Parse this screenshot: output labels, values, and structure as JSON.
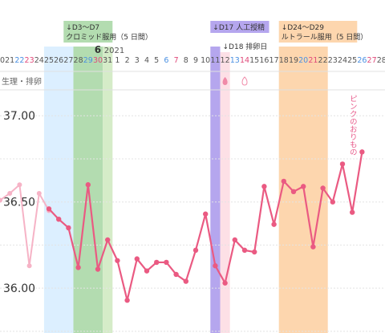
{
  "chart_data": {
    "type": "line",
    "title": "",
    "xlabel": "",
    "ylabel": "",
    "month_marker": {
      "label": "6",
      "year": "2021",
      "at_day_index": 9
    },
    "row_label": "生理・排卵",
    "days": [
      "20",
      "21",
      "22",
      "23",
      "24",
      "25",
      "26",
      "27",
      "28",
      "29",
      "30",
      "31",
      "1",
      "2",
      "3",
      "4",
      "5",
      "6",
      "7",
      "8",
      "9",
      "10",
      "11",
      "12",
      "13",
      "14",
      "15",
      "16",
      "17",
      "18",
      "19",
      "20",
      "21",
      "22",
      "23",
      "24",
      "25",
      "26",
      "27",
      "28"
    ],
    "day_colors": [
      "#555555",
      "#555555",
      "#4a90e2",
      "#e04a7a",
      "#555555",
      "#555555",
      "#555555",
      "#555555",
      "#555555",
      "#4a90e2",
      "#e04a7a",
      "#555555",
      "#555555",
      "#555555",
      "#555555",
      "#555555",
      "#555555",
      "#4a90e2",
      "#e04a7a",
      "#555555",
      "#555555",
      "#555555",
      "#555555",
      "#555555",
      "#4a90e2",
      "#e04a7a",
      "#555555",
      "#555555",
      "#555555",
      "#555555",
      "#555555",
      "#4a90e2",
      "#e04a7a",
      "#555555",
      "#555555",
      "#555555",
      "#555555",
      "#4a90e2",
      "#e04a7a",
      "#555555"
    ],
    "y_ticks": [
      {
        "value": 37.0,
        "label": "37.00"
      },
      {
        "value": 36.5,
        "label": "36.50"
      },
      {
        "value": 36.0,
        "label": "36.00"
      }
    ],
    "ylim": [
      35.81,
      37.15
    ],
    "prior_series": {
      "name": "",
      "color": "#f6b3c6",
      "points": [
        [
          0,
          36.51
        ],
        [
          1,
          36.55
        ],
        [
          2,
          36.6
        ],
        [
          3,
          36.13
        ],
        [
          4,
          36.55
        ],
        [
          5,
          36.45
        ]
      ]
    },
    "series": [
      {
        "name": "",
        "color": "#ea5a82",
        "points": [
          [
            5,
            36.46
          ],
          [
            6,
            36.4
          ],
          [
            7,
            36.35
          ],
          [
            8,
            36.12
          ],
          [
            9,
            36.6
          ],
          [
            10,
            36.11
          ],
          [
            11,
            36.28
          ],
          [
            12,
            36.16
          ],
          [
            13,
            35.93
          ],
          [
            14,
            36.17
          ],
          [
            15,
            36.1
          ],
          [
            16,
            36.15
          ],
          [
            17,
            36.15
          ],
          [
            18,
            36.08
          ],
          [
            19,
            36.04
          ],
          [
            20,
            36.22
          ],
          [
            21,
            36.43
          ],
          [
            22,
            36.13
          ],
          [
            23,
            36.03
          ],
          [
            24,
            36.28
          ],
          [
            25,
            36.22
          ],
          [
            26,
            36.21
          ],
          [
            27,
            36.59
          ],
          [
            28,
            36.37
          ],
          [
            29,
            36.62
          ],
          [
            30,
            36.56
          ],
          [
            31,
            36.59
          ],
          [
            32,
            36.24
          ],
          [
            33,
            36.58
          ],
          [
            34,
            36.5
          ],
          [
            35,
            36.72
          ],
          [
            36,
            36.44
          ],
          [
            37,
            36.79
          ]
        ]
      }
    ],
    "bands": [
      {
        "from_day": 5,
        "to_day": 7,
        "color": "#dcefff",
        "label": ""
      },
      {
        "from_day": 8,
        "to_day": 10,
        "color": "#b3dcb0",
        "label": ""
      },
      {
        "from_day": 11,
        "to_day": 11,
        "color": "#d5ecc8",
        "label": ""
      },
      {
        "from_day": 22,
        "to_day": 22,
        "color": "#b5a6ee",
        "label": ""
      },
      {
        "from_day": 23,
        "to_day": 23,
        "color": "#fde0e6",
        "label": ""
      },
      {
        "from_day": 29,
        "to_day": 33,
        "color": "#fdd6ae",
        "label": ""
      }
    ],
    "annotations": [
      {
        "lines": [
          "↓D3〜D7",
          "クロミッド服用（5 日間）"
        ],
        "color": "#b3dcb0",
        "from_day": 7,
        "to_day": 11
      },
      {
        "lines": [
          "↓D17 人工授精"
        ],
        "color": "#b5a6ee",
        "from_day": 22,
        "to_day": 27
      },
      {
        "lines": [
          "↓D18 排卵日"
        ],
        "color": "#ffffff",
        "from_day": 23,
        "to_day": 27,
        "row": 2
      },
      {
        "lines": [
          "↓D24〜D29",
          "ルトラール服用（5 日間）"
        ],
        "color": "#fdd6ae",
        "from_day": 29,
        "to_day": 36
      }
    ],
    "moon_markers": {
      "days": [
        5,
        6,
        7,
        8,
        9,
        10
      ],
      "color": "#4aa8d8"
    },
    "ovulation_markers": [
      {
        "day": 23,
        "style": "filled",
        "color": "#f08aa8"
      },
      {
        "day": 25,
        "style": "outline",
        "color": "#f08aa8"
      }
    ],
    "vertical_note": {
      "text": "ピンクのおりもの",
      "day": 36,
      "color": "#e85a8a"
    }
  }
}
